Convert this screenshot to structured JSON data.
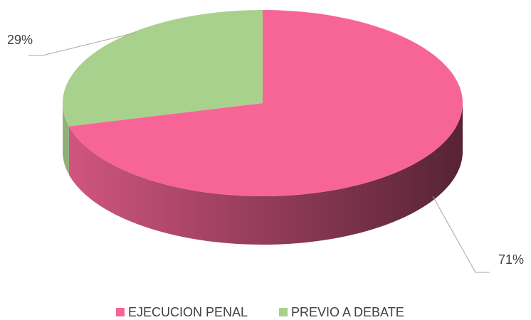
{
  "chart_data": {
    "type": "pie",
    "categories": [
      "EJECUCION PENAL",
      "PREVIO A DEBATE"
    ],
    "values": [
      71,
      29
    ],
    "value_labels": [
      "71%",
      "29%"
    ],
    "colors": [
      "#f76597",
      "#a9d18e"
    ],
    "legend": "bottom"
  }
}
